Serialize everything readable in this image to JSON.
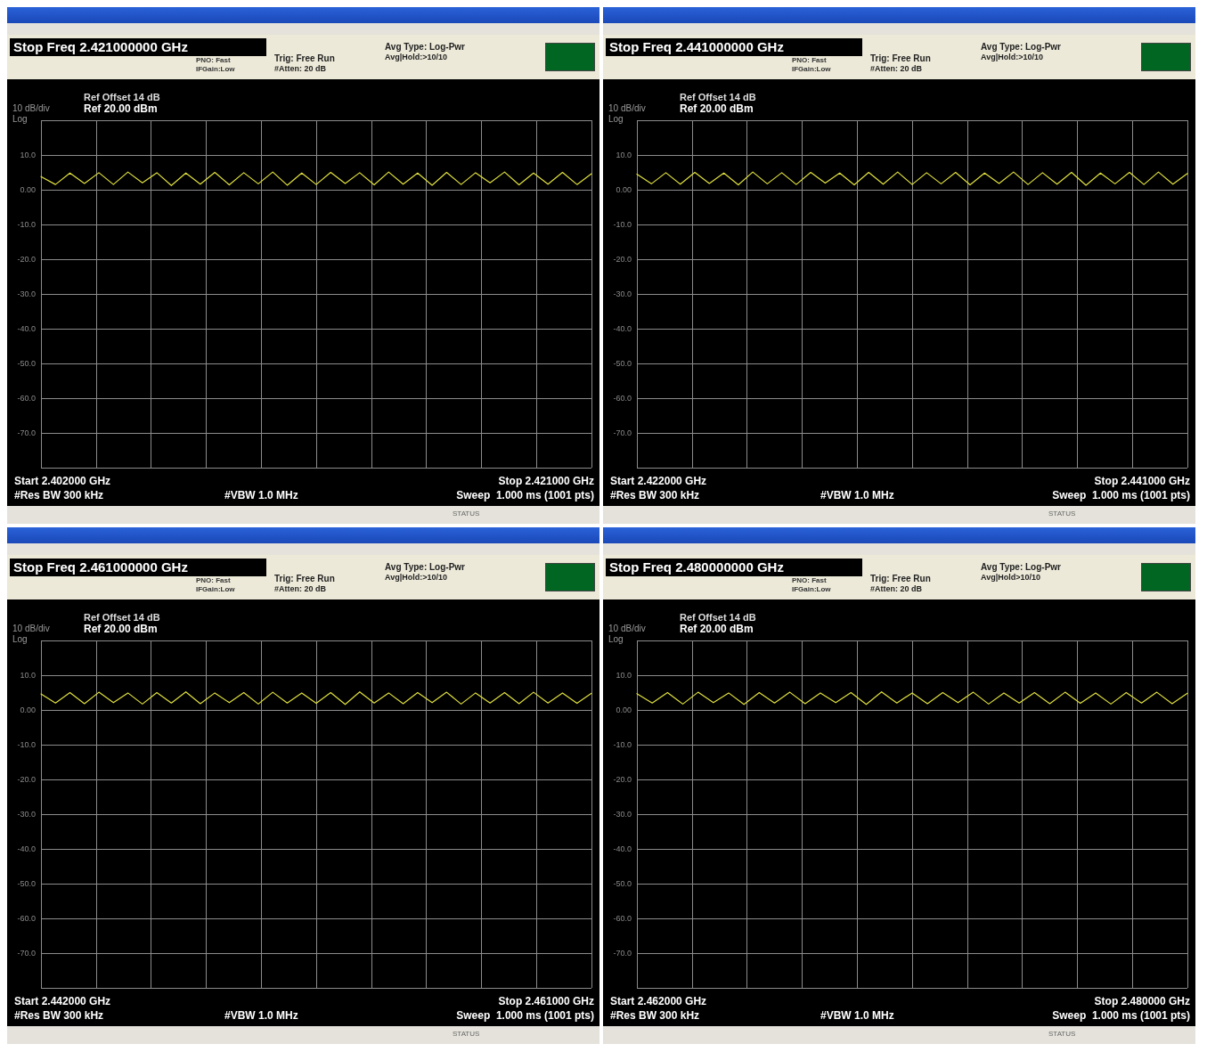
{
  "chart_data": [
    {
      "type": "line",
      "title": "Stop Freq 2.421000000 GHz",
      "ylabel": "10 dB/div",
      "annotations": [
        "Log",
        "PNO: Fast",
        "IFGain:Low",
        "Trig: Free Run",
        "#Atten: 20 dB",
        "Avg Type: Log-Pwr",
        "Avg|Hold:>10/10",
        "Ref Offset 14 dB",
        "Ref 20.00 dBm",
        "Start 2.402000 GHz",
        "Stop 2.421000 GHz",
        "#Res BW 300 kHz",
        "#VBW 1.0 MHz",
        "Sweep  1.000 ms (1001 pts)",
        "STATUS"
      ],
      "categories": [
        null,
        null,
        null,
        null,
        null,
        null,
        null,
        null,
        null,
        null,
        null,
        null,
        null,
        null,
        null,
        null,
        null,
        null,
        null,
        null,
        null,
        null,
        null,
        null,
        null,
        null,
        null,
        null,
        null,
        null,
        null,
        null,
        null,
        null,
        null,
        null,
        null,
        null,
        null
      ],
      "ylim": [
        -80,
        20
      ],
      "yticks": [
        {
          "value": 20,
          "label": null
        },
        {
          "value": 10,
          "label": "10.0"
        },
        {
          "value": 0,
          "label": "0.00"
        },
        {
          "value": -10,
          "label": "-10.0"
        },
        {
          "value": -20,
          "label": "-20.0"
        },
        {
          "value": -30,
          "label": "-30.0"
        },
        {
          "value": -40,
          "label": "-40.0"
        },
        {
          "value": -50,
          "label": "-50.0"
        },
        {
          "value": -60,
          "label": "-60.0"
        },
        {
          "value": -70,
          "label": "-70.0"
        },
        {
          "value": -80,
          "label": null
        }
      ],
      "grid": true,
      "tick_labels": "y",
      "marker": "none",
      "line_style": "solid",
      "series": [
        {
          "color": "#e0e040",
          "values": [
            3.8,
            1.5,
            4.8,
            1.8,
            4.9,
            1.5,
            5.1,
            2.0,
            4.9,
            1.2,
            4.8,
            1.6,
            5.0,
            1.4,
            4.9,
            1.7,
            5.1,
            1.3,
            4.8,
            1.5,
            5.0,
            1.8,
            4.9,
            1.4,
            5.1,
            1.6,
            4.8,
            1.3,
            5.0,
            1.5,
            4.9,
            2.0,
            5.1,
            1.4,
            4.8,
            1.6,
            5.0,
            1.5,
            4.6
          ]
        }
      ]
    },
    {
      "type": "line",
      "title": "Stop Freq 2.441000000 GHz",
      "ylabel": "10 dB/div",
      "annotations": [
        "Log",
        "PNO: Fast",
        "IFGain:Low",
        "Trig: Free Run",
        "#Atten: 20 dB",
        "Avg Type: Log-Pwr",
        "Avg|Hold:>10/10",
        "Ref Offset 14 dB",
        "Ref 20.00 dBm",
        "Start 2.422000 GHz",
        "Stop 2.441000 GHz",
        "#Res BW 300 kHz",
        "#VBW 1.0 MHz",
        "Sweep  1.000 ms (1001 pts)",
        "STATUS"
      ],
      "categories": [
        null,
        null,
        null,
        null,
        null,
        null,
        null,
        null,
        null,
        null,
        null,
        null,
        null,
        null,
        null,
        null,
        null,
        null,
        null,
        null,
        null,
        null,
        null,
        null,
        null,
        null,
        null,
        null,
        null,
        null,
        null,
        null,
        null,
        null,
        null,
        null,
        null,
        null,
        null
      ],
      "ylim": [
        -80,
        20
      ],
      "yticks": [
        {
          "value": 20,
          "label": null
        },
        {
          "value": 10,
          "label": "10.0"
        },
        {
          "value": 0,
          "label": "0.00"
        },
        {
          "value": -10,
          "label": "-10.0"
        },
        {
          "value": -20,
          "label": "-20.0"
        },
        {
          "value": -30,
          "label": "-30.0"
        },
        {
          "value": -40,
          "label": "-40.0"
        },
        {
          "value": -50,
          "label": "-50.0"
        },
        {
          "value": -60,
          "label": "-60.0"
        },
        {
          "value": -70,
          "label": "-70.0"
        },
        {
          "value": -80,
          "label": null
        }
      ],
      "grid": true,
      "tick_labels": "y",
      "marker": "none",
      "line_style": "solid",
      "series": [
        {
          "color": "#e0e040",
          "values": [
            4.5,
            1.7,
            4.9,
            1.6,
            5.0,
            1.8,
            4.8,
            1.4,
            5.1,
            1.7,
            4.9,
            1.5,
            5.0,
            1.9,
            4.8,
            1.4,
            5.0,
            1.6,
            5.1,
            1.5,
            4.9,
            1.7,
            5.0,
            1.4,
            4.8,
            1.8,
            5.1,
            1.5,
            4.9,
            1.6,
            5.0,
            1.3,
            4.8,
            1.7,
            5.0,
            1.5,
            5.1,
            1.6,
            4.7
          ]
        }
      ]
    },
    {
      "type": "line",
      "title": "Stop Freq 2.461000000 GHz",
      "ylabel": "10 dB/div",
      "annotations": [
        "Log",
        "PNO: Fast",
        "IFGain:Low",
        "Trig: Free Run",
        "#Atten: 20 dB",
        "Avg Type: Log-Pwr",
        "Avg|Hold:>10/10",
        "Ref Offset 14 dB",
        "Ref 20.00 dBm",
        "Start 2.442000 GHz",
        "Stop 2.461000 GHz",
        "#Res BW 300 kHz",
        "#VBW 1.0 MHz",
        "Sweep  1.000 ms (1001 pts)",
        "STATUS"
      ],
      "categories": [
        null,
        null,
        null,
        null,
        null,
        null,
        null,
        null,
        null,
        null,
        null,
        null,
        null,
        null,
        null,
        null,
        null,
        null,
        null,
        null,
        null,
        null,
        null,
        null,
        null,
        null,
        null,
        null,
        null,
        null,
        null,
        null,
        null,
        null,
        null,
        null,
        null,
        null,
        null
      ],
      "ylim": [
        -80,
        20
      ],
      "yticks": [
        {
          "value": 20,
          "label": null
        },
        {
          "value": 10,
          "label": "10.0"
        },
        {
          "value": 0,
          "label": "0.00"
        },
        {
          "value": -10,
          "label": "-10.0"
        },
        {
          "value": -20,
          "label": "-20.0"
        },
        {
          "value": -30,
          "label": "-30.0"
        },
        {
          "value": -40,
          "label": "-40.0"
        },
        {
          "value": -50,
          "label": "-50.0"
        },
        {
          "value": -60,
          "label": "-60.0"
        },
        {
          "value": -70,
          "label": "-70.0"
        },
        {
          "value": -80,
          "label": null
        }
      ],
      "grid": true,
      "tick_labels": "y",
      "marker": "none",
      "line_style": "solid",
      "series": [
        {
          "color": "#e0e040",
          "values": [
            4.6,
            2.0,
            5.0,
            1.8,
            5.1,
            2.1,
            4.9,
            1.7,
            5.0,
            2.0,
            5.2,
            1.8,
            4.9,
            2.1,
            5.0,
            1.7,
            5.1,
            2.0,
            4.9,
            1.9,
            5.0,
            1.6,
            5.2,
            2.0,
            4.9,
            1.8,
            5.0,
            2.1,
            5.1,
            1.7,
            4.9,
            2.0,
            5.0,
            1.8,
            5.1,
            2.0,
            4.9,
            1.9,
            4.8
          ]
        }
      ]
    },
    {
      "type": "line",
      "title": "Stop Freq 2.480000000 GHz",
      "ylabel": "10 dB/div",
      "annotations": [
        "Log",
        "PNO: Fast",
        "IFGain:Low",
        "Trig: Free Run",
        "#Atten: 20 dB",
        "Avg Type: Log-Pwr",
        "Avg|Hold>10/10",
        "Ref Offset 14 dB",
        "Ref 20.00 dBm",
        "Start 2.462000 GHz",
        "Stop 2.480000 GHz",
        "#Res BW 300 kHz",
        "#VBW 1.0 MHz",
        "Sweep  1.000 ms (1001 pts)",
        "STATUS"
      ],
      "categories": [
        null,
        null,
        null,
        null,
        null,
        null,
        null,
        null,
        null,
        null,
        null,
        null,
        null,
        null,
        null,
        null,
        null,
        null,
        null,
        null,
        null,
        null,
        null,
        null,
        null,
        null,
        null,
        null,
        null,
        null,
        null,
        null,
        null,
        null,
        null,
        null,
        null
      ],
      "ylim": [
        -80,
        20
      ],
      "yticks": [
        {
          "value": 20,
          "label": null
        },
        {
          "value": 10,
          "label": "10.0"
        },
        {
          "value": 0,
          "label": "0.00"
        },
        {
          "value": -10,
          "label": "-10.0"
        },
        {
          "value": -20,
          "label": "-20.0"
        },
        {
          "value": -30,
          "label": "-30.0"
        },
        {
          "value": -40,
          "label": "-40.0"
        },
        {
          "value": -50,
          "label": "-50.0"
        },
        {
          "value": -60,
          "label": "-60.0"
        },
        {
          "value": -70,
          "label": "-70.0"
        },
        {
          "value": -80,
          "label": null
        }
      ],
      "grid": true,
      "tick_labels": "y",
      "marker": "none",
      "line_style": "solid",
      "series": [
        {
          "color": "#e0e040",
          "values": [
            4.7,
            2.0,
            5.0,
            1.7,
            5.1,
            2.1,
            4.9,
            1.6,
            5.0,
            2.0,
            5.1,
            1.8,
            4.9,
            2.1,
            5.0,
            1.6,
            5.2,
            2.0,
            4.9,
            1.8,
            5.0,
            2.1,
            5.1,
            1.7,
            4.9,
            2.0,
            5.0,
            1.8,
            5.1,
            1.9,
            4.9,
            1.7,
            5.0,
            2.0,
            5.1,
            1.8,
            4.8
          ]
        }
      ]
    }
  ]
}
